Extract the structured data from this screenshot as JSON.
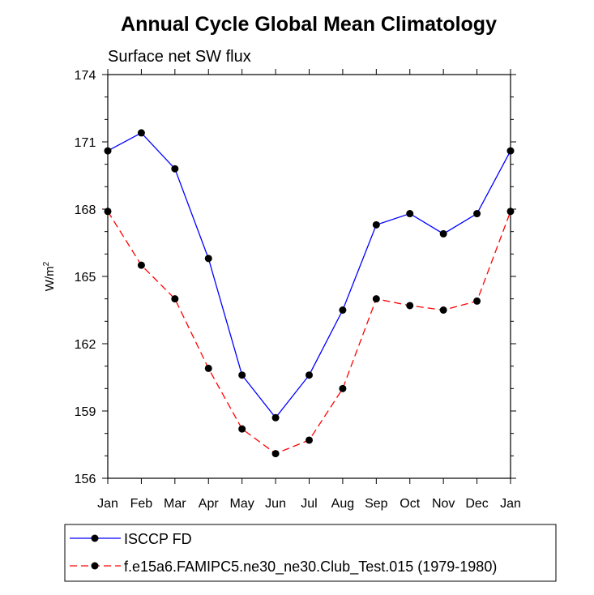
{
  "chart_data": {
    "type": "line",
    "title": "Annual Cycle Global Mean Climatology",
    "subtitle": "Surface net SW flux",
    "ylabel": "W/m",
    "ylabel_superscript": "2",
    "xlabel": "",
    "categories": [
      "Jan",
      "Feb",
      "Mar",
      "Apr",
      "May",
      "Jun",
      "Jul",
      "Aug",
      "Sep",
      "Oct",
      "Nov",
      "Dec",
      "Jan"
    ],
    "ylim": [
      156,
      174
    ],
    "yticks": [
      "156",
      "159",
      "162",
      "165",
      "168",
      "171",
      "174"
    ],
    "grid": false,
    "legend_position": "bottom",
    "series": [
      {
        "name": "ISCCP FD",
        "color": "#0000ff",
        "dash": "solid",
        "values": [
          170.6,
          171.4,
          169.8,
          165.8,
          160.6,
          158.7,
          160.6,
          163.5,
          167.3,
          167.8,
          166.9,
          167.8,
          170.6
        ]
      },
      {
        "name": "f.e15a6.FAMIPC5.ne30_ne30.Club_Test.015 (1979-1980)",
        "color": "#ff0000",
        "dash": "dashed",
        "values": [
          167.9,
          165.5,
          164.0,
          160.9,
          158.2,
          157.1,
          157.7,
          160.0,
          164.0,
          163.7,
          163.5,
          163.9,
          167.9
        ]
      }
    ]
  }
}
